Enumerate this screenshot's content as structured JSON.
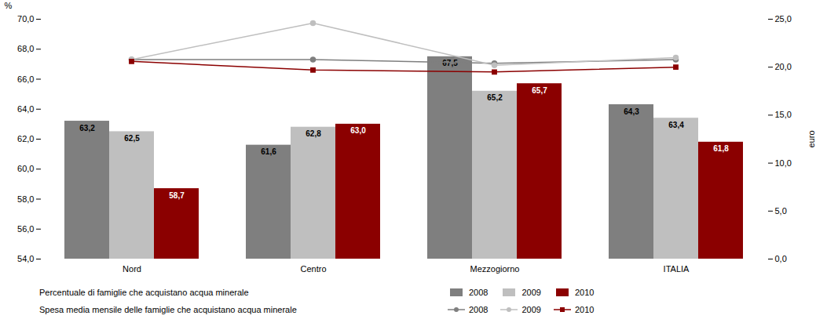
{
  "chart_data": {
    "type": "bar",
    "categories": [
      "Nord",
      "Centro",
      "Mezzogiorno",
      "ITALIA"
    ],
    "ylabel": "%",
    "y2label": "euro",
    "ylim": [
      54.0,
      70.0
    ],
    "yticks": [
      {
        "value": 54.0,
        "label": "54,0"
      },
      {
        "value": 56.0,
        "label": "56,0"
      },
      {
        "value": 58.0,
        "label": "58,0"
      },
      {
        "value": 60.0,
        "label": "60,0"
      },
      {
        "value": 62.0,
        "label": "62,0"
      },
      {
        "value": 64.0,
        "label": "64,0"
      },
      {
        "value": 66.0,
        "label": "66,0"
      },
      {
        "value": 68.0,
        "label": "68,0"
      },
      {
        "value": 70.0,
        "label": "70,0"
      }
    ],
    "y2lim": [
      0.0,
      25.0
    ],
    "y2ticks": [
      {
        "value": 0.0,
        "label": "0,0"
      },
      {
        "value": 5.0,
        "label": "5,0"
      },
      {
        "value": 10.0,
        "label": "10,0"
      },
      {
        "value": 15.0,
        "label": "15,0"
      },
      {
        "value": 20.0,
        "label": "20,0"
      },
      {
        "value": 25.0,
        "label": "25,0"
      }
    ],
    "grid": false,
    "data_labels": true,
    "legend": "bottom",
    "legend_titles": {
      "bar": "Percentuale di famiglie che acquistano acqua minerale",
      "line": "Spesa media mensile delle famiglie  che acquistano acqua minerale"
    },
    "series": [
      {
        "name": "2008",
        "type": "bar",
        "color": "#7f7f7f",
        "values": [
          63.2,
          61.6,
          67.5,
          64.3
        ],
        "value_labels": [
          "63,2",
          "61,6",
          "67,5",
          "64,3"
        ]
      },
      {
        "name": "2009",
        "type": "bar",
        "color": "#bfbfbf",
        "values": [
          62.5,
          62.8,
          65.2,
          63.4
        ],
        "value_labels": [
          "62,5",
          "62,8",
          "65,2",
          "63,4"
        ]
      },
      {
        "name": "2010",
        "type": "bar",
        "color": "#8b0000",
        "values": [
          58.7,
          63.0,
          65.7,
          61.8
        ],
        "value_labels": [
          "58,7",
          "63,0",
          "65,7",
          "61,8"
        ]
      },
      {
        "name": "2008",
        "type": "line",
        "axis": "y2",
        "color": "#7f7f7f",
        "marker": "circle",
        "values": [
          20.8,
          20.8,
          20.4,
          20.8
        ]
      },
      {
        "name": "2009",
        "type": "line",
        "axis": "y2",
        "color": "#bfbfbf",
        "marker": "circle",
        "values": [
          20.8,
          24.6,
          20.2,
          21.0
        ]
      },
      {
        "name": "2010",
        "type": "line",
        "axis": "y2",
        "color": "#8b0000",
        "marker": "square",
        "values": [
          20.6,
          19.7,
          19.5,
          20.0
        ]
      }
    ]
  }
}
